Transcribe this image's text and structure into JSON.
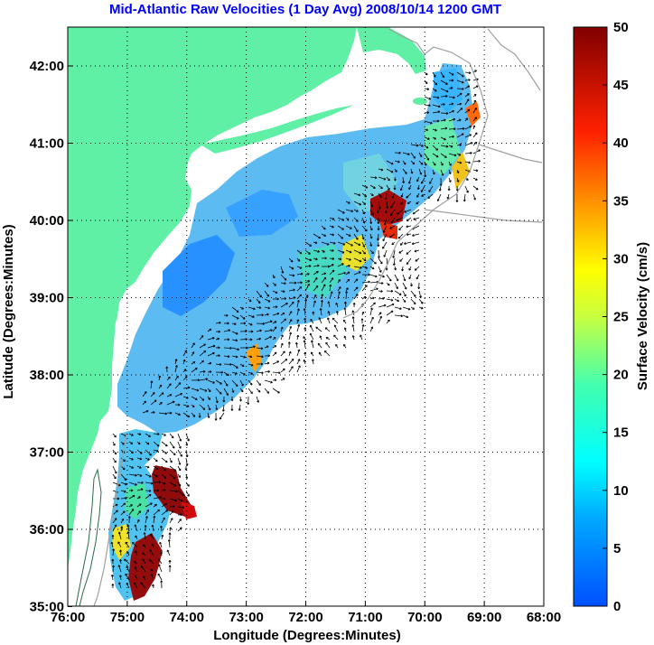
{
  "map": {
    "title": "Mid-Atlantic Raw Velocities (1 Day Avg) 2008/10/14 1200 GMT",
    "title_color": "#0000ff",
    "land_color": "#5ff0a6",
    "x_axis_label": "Longitude (Degrees:Minutes)",
    "y_axis_label": "Latitude (Degrees:Minutes)",
    "x_ticks": [
      "76:00",
      "75:00",
      "74:00",
      "73:00",
      "72:00",
      "71:00",
      "70:00",
      "69:00",
      "68:00"
    ],
    "y_ticks": [
      "42:00",
      "41:00",
      "40:00",
      "39:00",
      "38:00",
      "37:00",
      "36:00",
      "35:00"
    ],
    "colorbar": {
      "label": "Surface Velocity (cm/s)",
      "ticks": [
        "50",
        "45",
        "40",
        "35",
        "30",
        "25",
        "20",
        "15",
        "10",
        "5",
        "0"
      ],
      "min": 0,
      "max": 50,
      "colormap": "jet"
    }
  }
}
